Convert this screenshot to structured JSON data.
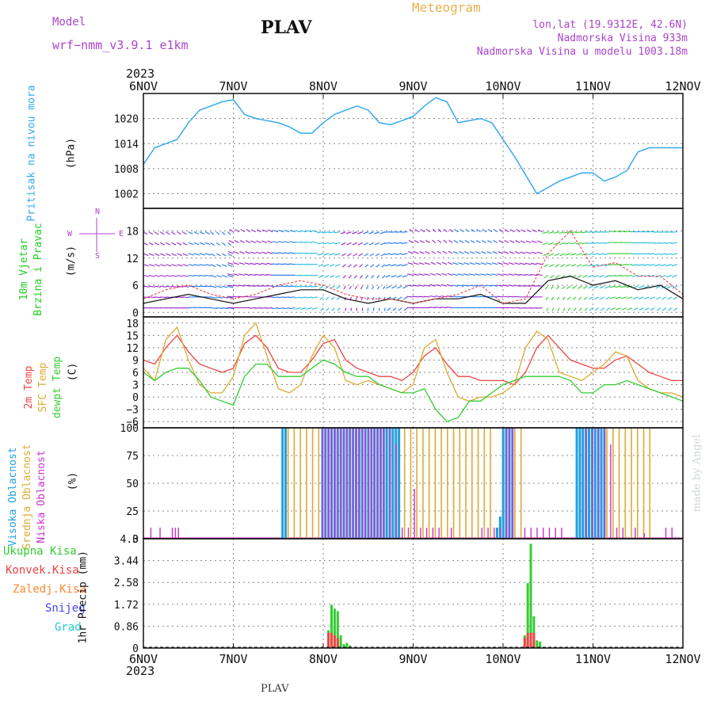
{
  "header": {
    "title": "PLAV",
    "model_label": "Model",
    "model_name": "wrf−nmm_v3.9.1  e1km",
    "product": "Meteogram",
    "coords": "lon,lat (19.9312E, 42.6N)",
    "altitude": "Nadmorska Visina 933m",
    "model_altitude": "Nadmorska Visina u modelu 1003.18m",
    "year_top": "2023",
    "year_bottom": "2023",
    "footer": "PLAV",
    "watermark": "made by Angel"
  },
  "colors": {
    "pressure": "#33aaee",
    "wind_legend": "#22cc22",
    "temp2m": "#ee4444",
    "sfc_temp": "#ddaa33",
    "dewpoint": "#33cc33",
    "high_cloud": "#22a0e0",
    "mid_cloud": "#ddaa33",
    "low_cloud": "#cc33cc",
    "total_precip": "#33cc33",
    "conv_precip": "#ee4444",
    "frz_precip": "#ff8833",
    "snow": "#4444ee",
    "hail": "#22cccc",
    "title_purple": "#aa44cc",
    "meteogram_orange": "#e8b050"
  },
  "chart_data": [
    {
      "type": "line",
      "panel": "pressure",
      "ylabel_name": "Pritisak na nivou mora",
      "unit": "(hPa)",
      "yticks": [
        "1020",
        "1014",
        "1008",
        "1002"
      ],
      "ylim": [
        998.5,
        1026
      ],
      "x": [
        0,
        3,
        6,
        9,
        12,
        15,
        18,
        21,
        24,
        27,
        30,
        33,
        36,
        39,
        42,
        45,
        48,
        51,
        54,
        57,
        60,
        63,
        66,
        69,
        72,
        75,
        78,
        81,
        84,
        87,
        90,
        93,
        96,
        99,
        102,
        105,
        108,
        111,
        114,
        117,
        120,
        123,
        126,
        129,
        132,
        135,
        138,
        141,
        144
      ],
      "values": [
        1009,
        1013,
        1014,
        1015,
        1019,
        1022,
        1023,
        1024,
        1024.5,
        1021,
        1020,
        1019.5,
        1019,
        1018,
        1016.5,
        1016.5,
        1019,
        1021,
        1022,
        1023,
        1022,
        1019,
        1018.5,
        1019.5,
        1020.5,
        1023,
        1025,
        1024,
        1019,
        1019.5,
        1020,
        1019,
        1015,
        1011,
        1006.5,
        1002,
        1003.5,
        1005,
        1006,
        1007,
        1007,
        1005,
        1006,
        1007.5,
        1012,
        1013,
        1013,
        1013,
        1013
      ],
      "series_name": "Pritisak na nivou mora"
    },
    {
      "type": "line",
      "panel": "wind",
      "ylabel_name": "10m Vjetar Brzina i Pravac",
      "unit": "(m/s)",
      "yticks": [
        "18",
        "12",
        "6",
        "0"
      ],
      "ylim": [
        -1,
        23
      ],
      "compass": [
        "N",
        "E",
        "S",
        "W"
      ],
      "x": [
        0,
        6,
        12,
        18,
        24,
        30,
        36,
        42,
        48,
        54,
        60,
        66,
        72,
        78,
        84,
        90,
        96,
        102,
        108,
        114,
        120,
        126,
        132,
        138,
        144
      ],
      "speed": [
        2,
        3,
        4,
        3,
        2,
        3,
        4,
        5,
        5,
        3,
        2,
        3,
        2,
        3,
        3,
        4,
        2,
        2,
        7,
        8,
        6,
        7,
        5,
        6,
        3
      ],
      "gust": [
        3,
        5,
        6,
        4,
        3,
        4,
        6,
        7,
        6,
        4,
        3,
        3,
        2,
        3,
        4,
        6,
        2,
        3,
        13,
        18,
        10,
        11,
        8,
        8,
        4
      ],
      "dir_deg": [
        90,
        90,
        80,
        100,
        270,
        260,
        250,
        240,
        200,
        180,
        180,
        210,
        270,
        280,
        270,
        270,
        270,
        260,
        190,
        200,
        210,
        230,
        220,
        210,
        220
      ]
    },
    {
      "type": "line",
      "panel": "temperature",
      "ylabel_names": [
        "2m Temp",
        "SFC Temp",
        "dewpt Temp"
      ],
      "unit": "(C)",
      "yticks": [
        "18",
        "15",
        "12",
        "9",
        "6",
        "3",
        "0",
        "−3",
        "−6"
      ],
      "ylim": [
        -7.5,
        19.5
      ],
      "x": [
        0,
        3,
        6,
        9,
        12,
        15,
        18,
        21,
        24,
        27,
        30,
        33,
        36,
        39,
        42,
        45,
        48,
        51,
        54,
        57,
        60,
        63,
        66,
        69,
        72,
        75,
        78,
        81,
        84,
        87,
        90,
        93,
        96,
        99,
        102,
        105,
        108,
        111,
        114,
        117,
        120,
        123,
        126,
        129,
        132,
        135,
        138,
        141,
        144
      ],
      "series": [
        {
          "name": "2m Temp",
          "values": [
            9,
            8,
            12,
            15,
            11,
            8,
            7,
            6,
            7,
            13,
            15,
            12,
            7,
            6,
            6,
            9,
            13,
            14,
            9,
            7,
            6,
            5,
            5,
            4,
            6,
            10,
            12,
            8,
            5,
            5,
            4,
            4,
            4,
            3,
            6,
            12,
            15,
            12,
            9,
            8,
            7,
            7,
            9,
            10,
            8,
            6,
            5,
            4,
            4
          ]
        },
        {
          "name": "SFC Temp",
          "values": [
            7,
            4,
            14,
            17,
            9,
            3,
            1,
            1,
            5,
            15,
            18,
            10,
            2,
            1,
            3,
            10,
            15,
            12,
            4,
            3,
            4,
            3,
            2,
            1,
            3,
            12,
            14,
            6,
            0,
            -1,
            0,
            0,
            1,
            3,
            12,
            16,
            14,
            6,
            5,
            4,
            6,
            8,
            11,
            10,
            4,
            2,
            1,
            1,
            0
          ]
        },
        {
          "name": "dewpt Temp",
          "values": [
            6,
            4,
            6,
            7,
            7,
            4,
            0,
            -1,
            -2,
            5,
            8,
            8,
            5,
            5,
            5,
            7,
            9,
            8,
            6,
            5,
            5,
            3,
            2,
            1,
            1,
            2,
            -3,
            -6,
            -5,
            -1,
            -1,
            1,
            3,
            4,
            5,
            5,
            5,
            5,
            4,
            1,
            1,
            3,
            3,
            4,
            3,
            2,
            1,
            0,
            -1
          ]
        }
      ]
    },
    {
      "type": "bar",
      "panel": "cloud",
      "ylabel_names": [
        "Visoka Oblacnost",
        "Srednja Oblacnost",
        "Niska Oblacnost"
      ],
      "unit": "(%)",
      "yticks": [
        "100",
        "75",
        "50",
        "25",
        "0"
      ],
      "ylim": [
        0,
        100
      ],
      "high": [
        [
          45,
          100
        ],
        [
          46,
          100
        ],
        [
          58,
          100
        ],
        [
          59,
          100
        ],
        [
          60,
          100
        ],
        [
          61,
          100
        ],
        [
          62,
          100
        ],
        [
          63,
          100
        ],
        [
          64,
          100
        ],
        [
          65,
          100
        ],
        [
          66,
          100
        ],
        [
          67,
          100
        ],
        [
          68,
          100
        ],
        [
          69,
          100
        ],
        [
          70,
          100
        ],
        [
          71,
          100
        ],
        [
          72,
          100
        ],
        [
          73,
          100
        ],
        [
          74,
          100
        ],
        [
          75,
          100
        ],
        [
          76,
          100
        ],
        [
          77,
          100
        ],
        [
          78,
          100
        ],
        [
          79,
          100
        ],
        [
          80,
          100
        ],
        [
          81,
          100
        ],
        [
          82,
          100
        ],
        [
          83,
          100
        ],
        [
          115,
          10
        ],
        [
          116,
          20
        ],
        [
          117,
          100
        ],
        [
          118,
          100
        ],
        [
          119,
          100
        ],
        [
          120,
          100
        ],
        [
          141,
          100
        ],
        [
          142,
          100
        ],
        [
          143,
          100
        ],
        [
          144,
          100
        ],
        [
          145,
          100
        ],
        [
          146,
          100
        ],
        [
          147,
          100
        ],
        [
          148,
          100
        ],
        [
          149,
          100
        ],
        [
          150,
          100
        ]
      ],
      "mid": [
        [
          47,
          100
        ],
        [
          48,
          100
        ],
        [
          49,
          100
        ],
        [
          50,
          100
        ],
        [
          51,
          100
        ],
        [
          52,
          100
        ],
        [
          53,
          100
        ],
        [
          54,
          100
        ],
        [
          55,
          100
        ],
        [
          56,
          100
        ],
        [
          57,
          100
        ],
        [
          58,
          100
        ],
        [
          59,
          100
        ],
        [
          60,
          100
        ],
        [
          61,
          100
        ],
        [
          62,
          100
        ],
        [
          63,
          100
        ],
        [
          64,
          100
        ],
        [
          65,
          100
        ],
        [
          66,
          100
        ],
        [
          67,
          100
        ],
        [
          68,
          100
        ],
        [
          69,
          100
        ],
        [
          70,
          100
        ],
        [
          71,
          100
        ],
        [
          72,
          100
        ],
        [
          73,
          100
        ],
        [
          74,
          100
        ],
        [
          75,
          100
        ],
        [
          76,
          100
        ],
        [
          77,
          100
        ],
        [
          78,
          100
        ],
        [
          79,
          100
        ],
        [
          80,
          100
        ],
        [
          81,
          100
        ],
        [
          82,
          100
        ],
        [
          83,
          100
        ],
        [
          84,
          100
        ],
        [
          85,
          100
        ],
        [
          86,
          100
        ],
        [
          87,
          100
        ],
        [
          88,
          100
        ],
        [
          89,
          100
        ],
        [
          90,
          100
        ],
        [
          91,
          100
        ],
        [
          92,
          100
        ],
        [
          93,
          100
        ],
        [
          94,
          100
        ],
        [
          95,
          100
        ],
        [
          96,
          100
        ],
        [
          97,
          100
        ],
        [
          98,
          100
        ],
        [
          99,
          100
        ],
        [
          100,
          100
        ],
        [
          101,
          100
        ],
        [
          102,
          100
        ],
        [
          103,
          100
        ],
        [
          104,
          100
        ],
        [
          105,
          100
        ],
        [
          106,
          100
        ],
        [
          107,
          100
        ],
        [
          108,
          100
        ],
        [
          109,
          100
        ],
        [
          110,
          100
        ],
        [
          111,
          100
        ],
        [
          112,
          100
        ],
        [
          113,
          100
        ],
        [
          114,
          100
        ],
        [
          117,
          100
        ],
        [
          118,
          100
        ],
        [
          119,
          100
        ],
        [
          120,
          100
        ],
        [
          121,
          100
        ],
        [
          122,
          100
        ],
        [
          123,
          100
        ],
        [
          124,
          100
        ],
        [
          142,
          100
        ],
        [
          143,
          100
        ],
        [
          144,
          100
        ],
        [
          145,
          100
        ],
        [
          146,
          100
        ],
        [
          147,
          100
        ],
        [
          148,
          100
        ],
        [
          149,
          100
        ],
        [
          150,
          100
        ],
        [
          151,
          100
        ],
        [
          152,
          100
        ],
        [
          153,
          100
        ],
        [
          154,
          100
        ],
        [
          155,
          100
        ],
        [
          156,
          100
        ],
        [
          157,
          100
        ],
        [
          158,
          100
        ],
        [
          159,
          100
        ],
        [
          160,
          100
        ],
        [
          161,
          100
        ],
        [
          162,
          100
        ],
        [
          163,
          100
        ],
        [
          164,
          100
        ],
        [
          165,
          100
        ]
      ],
      "low": [
        [
          2,
          10
        ],
        [
          5,
          10
        ],
        [
          9,
          10
        ],
        [
          10,
          10
        ],
        [
          11,
          10
        ],
        [
          58,
          100
        ],
        [
          59,
          100
        ],
        [
          60,
          100
        ],
        [
          61,
          100
        ],
        [
          62,
          100
        ],
        [
          63,
          100
        ],
        [
          64,
          100
        ],
        [
          65,
          100
        ],
        [
          66,
          100
        ],
        [
          67,
          100
        ],
        [
          68,
          100
        ],
        [
          69,
          100
        ],
        [
          70,
          100
        ],
        [
          71,
          100
        ],
        [
          72,
          100
        ],
        [
          73,
          100
        ],
        [
          74,
          100
        ],
        [
          75,
          100
        ],
        [
          76,
          100
        ],
        [
          77,
          100
        ],
        [
          78,
          100
        ],
        [
          80,
          100
        ],
        [
          82,
          85
        ],
        [
          84,
          10
        ],
        [
          86,
          10
        ],
        [
          88,
          45
        ],
        [
          90,
          10
        ],
        [
          92,
          10
        ],
        [
          94,
          10
        ],
        [
          96,
          10
        ],
        [
          100,
          10
        ],
        [
          110,
          10
        ],
        [
          112,
          10
        ],
        [
          114,
          10
        ],
        [
          116,
          10
        ],
        [
          118,
          100
        ],
        [
          119,
          100
        ],
        [
          120,
          100
        ],
        [
          124,
          10
        ],
        [
          126,
          10
        ],
        [
          128,
          10
        ],
        [
          130,
          10
        ],
        [
          132,
          10
        ],
        [
          134,
          10
        ],
        [
          136,
          10
        ],
        [
          144,
          100
        ],
        [
          146,
          100
        ],
        [
          148,
          100
        ],
        [
          150,
          100
        ],
        [
          152,
          85
        ],
        [
          154,
          10
        ],
        [
          156,
          10
        ],
        [
          160,
          10
        ],
        [
          163,
          5
        ],
        [
          170,
          10
        ],
        [
          172,
          10
        ]
      ]
    },
    {
      "type": "bar",
      "panel": "precip",
      "ylabel_names": [
        "Ukupna Kisa",
        "Konvek.Kisa",
        "Zaledj.Kisa",
        "Snijeg",
        "Grad"
      ],
      "ylabel": "1hr Precip",
      "unit": "(mm)",
      "yticks": [
        "4.3",
        "3.44",
        "2.58",
        "1.72",
        "0.86",
        "0"
      ],
      "ylim": [
        0,
        4.3
      ],
      "total": [
        [
          60,
          0.7
        ],
        [
          61,
          1.7
        ],
        [
          62,
          1.55
        ],
        [
          63,
          1.45
        ],
        [
          64,
          0.5
        ],
        [
          65,
          0.15
        ],
        [
          66,
          0.2
        ],
        [
          67,
          0.1
        ],
        [
          124,
          0.5
        ],
        [
          125,
          2.55
        ],
        [
          126,
          4.1
        ],
        [
          127,
          1.25
        ],
        [
          128,
          0.3
        ],
        [
          129,
          0.25
        ]
      ],
      "conv": [
        [
          60,
          0.6
        ],
        [
          61,
          0.6
        ],
        [
          62,
          0.5
        ],
        [
          63,
          0.4
        ],
        [
          124,
          0.4
        ],
        [
          125,
          0.6
        ],
        [
          126,
          0.6
        ],
        [
          127,
          0.6
        ]
      ]
    }
  ],
  "x_axis": {
    "labels": [
      "6NOV",
      "7NOV",
      "8NOV",
      "9NOV",
      "10NOV",
      "11NOV",
      "12NOV"
    ],
    "hours": 144
  }
}
